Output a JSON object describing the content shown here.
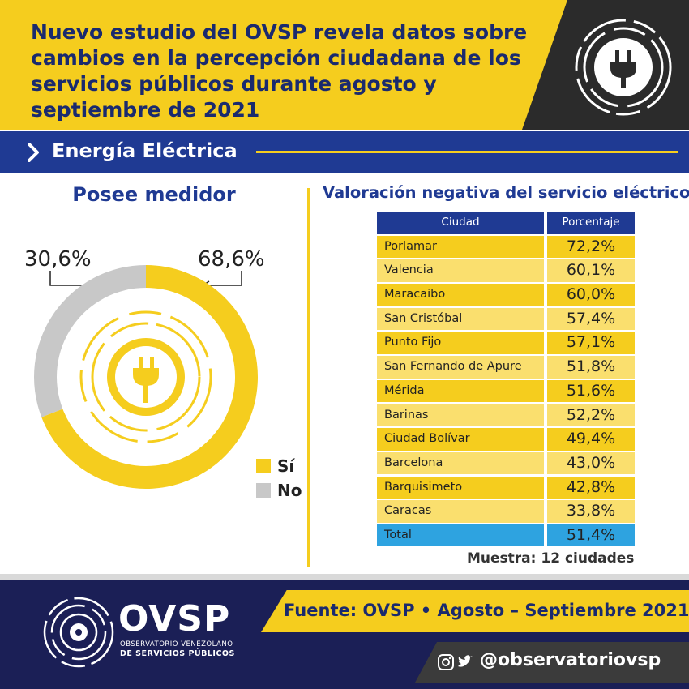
{
  "header": {
    "title": "Nuevo estudio del OVSP revela datos sobre cambios en la percepción ciudadana de los servicios públicos durante agosto y septiembre de 2021",
    "logo_icon": "plug-icon"
  },
  "section": {
    "title": "Energía Eléctrica"
  },
  "colors": {
    "yellow": "#f5cd1e",
    "blue": "#1f3a93",
    "gray": "#c8c8c8",
    "navy": "#1b1f56",
    "cyan": "#2ea3e0"
  },
  "chart_data": [
    {
      "type": "pie",
      "title": "Posee medidor",
      "slices": [
        {
          "label": "Sí",
          "value": 68.6,
          "display": "68,6%",
          "color": "#f5cd1e"
        },
        {
          "label": "No",
          "value": 30.6,
          "display": "30,6%",
          "color": "#c8c8c8"
        }
      ],
      "legend": "bottom-right",
      "center_icon": "plug-icon"
    },
    {
      "type": "table",
      "title": "Valoración negativa del servicio eléctrico",
      "columns": [
        "Ciudad",
        "Porcentaje"
      ],
      "rows": [
        [
          "Porlamar",
          "72,2%"
        ],
        [
          "Valencia",
          "60,1%"
        ],
        [
          "Maracaibo",
          "60,0%"
        ],
        [
          "San Cristóbal",
          "57,4%"
        ],
        [
          "Punto Fijo",
          "57,1%"
        ],
        [
          "San Fernando de Apure",
          "51,8%"
        ],
        [
          "Mérida",
          "51,6%"
        ],
        [
          "Barinas",
          "52,2%"
        ],
        [
          "Ciudad Bolívar",
          "49,4%"
        ],
        [
          "Barcelona",
          "43,0%"
        ],
        [
          "Barquisimeto",
          "42,8%"
        ],
        [
          "Caracas",
          "33,8%"
        ]
      ],
      "total": [
        "Total",
        "51,4%"
      ],
      "note": "Muestra: 12 ciudades"
    }
  ],
  "footer": {
    "brand": "OVSP",
    "brand_line1": "OBSERVATORIO VENEZOLANO",
    "brand_line2": "DE SERVICIOS PÚBLICOS",
    "source": "Fuente: OVSP  •  Agosto – Septiembre 2021",
    "social_handle": "@observatoriovsp",
    "social_icons": [
      "instagram-icon",
      "twitter-icon"
    ]
  }
}
